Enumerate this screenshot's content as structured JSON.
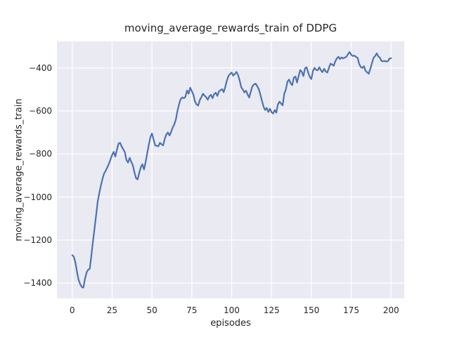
{
  "colors": {
    "figure_background": "#ffffff",
    "plot_background": "#eaeaf2",
    "grid": "#ffffff",
    "line": "#4c72b0",
    "text": "#262626"
  },
  "chart_data": {
    "type": "line",
    "title": "moving_average_rewards_train of DDPG",
    "xlabel": "episodes",
    "ylabel": "moving_average_rewards_train",
    "grid": true,
    "legend_position": "none",
    "xlim": [
      -9.6,
      208.3
    ],
    "ylim": [
      -1471,
      -277
    ],
    "x_ticks": [
      {
        "v": 0,
        "label": "0"
      },
      {
        "v": 25,
        "label": "25"
      },
      {
        "v": 50,
        "label": "50"
      },
      {
        "v": 75,
        "label": "75"
      },
      {
        "v": 100,
        "label": "100"
      },
      {
        "v": 125,
        "label": "125"
      },
      {
        "v": 150,
        "label": "150"
      },
      {
        "v": 175,
        "label": "175"
      },
      {
        "v": 200,
        "label": "200"
      }
    ],
    "y_ticks": [
      {
        "v": -400,
        "label": "−400"
      },
      {
        "v": -600,
        "label": "−600"
      },
      {
        "v": -800,
        "label": "−800"
      },
      {
        "v": -1000,
        "label": "−1000"
      },
      {
        "v": -1200,
        "label": "−1200"
      },
      {
        "v": -1400,
        "label": "−1400"
      }
    ],
    "series": [
      {
        "name": "moving_average_rewards_train",
        "color": "#4c72b0",
        "points": [
          [
            0,
            -1270
          ],
          [
            1,
            -1278
          ],
          [
            2,
            -1305
          ],
          [
            3,
            -1350
          ],
          [
            4,
            -1385
          ],
          [
            5,
            -1405
          ],
          [
            6,
            -1418
          ],
          [
            7,
            -1421
          ],
          [
            8,
            -1380
          ],
          [
            9,
            -1350
          ],
          [
            10,
            -1338
          ],
          [
            11,
            -1333
          ],
          [
            12,
            -1270
          ],
          [
            13,
            -1207
          ],
          [
            14,
            -1145
          ],
          [
            15,
            -1082
          ],
          [
            16,
            -1020
          ],
          [
            17,
            -980
          ],
          [
            18,
            -945
          ],
          [
            19,
            -915
          ],
          [
            20,
            -890
          ],
          [
            21,
            -878
          ],
          [
            22,
            -862
          ],
          [
            23,
            -846
          ],
          [
            24,
            -825
          ],
          [
            25,
            -805
          ],
          [
            26,
            -790
          ],
          [
            27,
            -812
          ],
          [
            28,
            -782
          ],
          [
            29,
            -752
          ],
          [
            30,
            -748
          ],
          [
            31,
            -765
          ],
          [
            32,
            -778
          ],
          [
            33,
            -792
          ],
          [
            34,
            -828
          ],
          [
            35,
            -840
          ],
          [
            36,
            -818
          ],
          [
            37,
            -836
          ],
          [
            38,
            -852
          ],
          [
            39,
            -885
          ],
          [
            40,
            -912
          ],
          [
            41,
            -918
          ],
          [
            42,
            -888
          ],
          [
            43,
            -862
          ],
          [
            44,
            -848
          ],
          [
            45,
            -872
          ],
          [
            46,
            -838
          ],
          [
            47,
            -798
          ],
          [
            48,
            -758
          ],
          [
            49,
            -722
          ],
          [
            50,
            -705
          ],
          [
            51,
            -732
          ],
          [
            52,
            -760
          ],
          [
            53,
            -762
          ],
          [
            54,
            -764
          ],
          [
            55,
            -748
          ],
          [
            56,
            -755
          ],
          [
            57,
            -760
          ],
          [
            58,
            -730
          ],
          [
            59,
            -710
          ],
          [
            60,
            -700
          ],
          [
            61,
            -714
          ],
          [
            62,
            -698
          ],
          [
            63,
            -677
          ],
          [
            64,
            -662
          ],
          [
            65,
            -640
          ],
          [
            66,
            -600
          ],
          [
            67,
            -568
          ],
          [
            68,
            -545
          ],
          [
            69,
            -537
          ],
          [
            70,
            -541
          ],
          [
            71,
            -534
          ],
          [
            72,
            -505
          ],
          [
            73,
            -520
          ],
          [
            74,
            -492
          ],
          [
            75,
            -508
          ],
          [
            76,
            -525
          ],
          [
            77,
            -556
          ],
          [
            78,
            -570
          ],
          [
            79,
            -575
          ],
          [
            80,
            -550
          ],
          [
            81,
            -536
          ],
          [
            82,
            -520
          ],
          [
            83,
            -529
          ],
          [
            84,
            -536
          ],
          [
            85,
            -548
          ],
          [
            86,
            -532
          ],
          [
            87,
            -525
          ],
          [
            88,
            -541
          ],
          [
            89,
            -522
          ],
          [
            90,
            -515
          ],
          [
            91,
            -530
          ],
          [
            92,
            -510
          ],
          [
            93,
            -503
          ],
          [
            94,
            -499
          ],
          [
            95,
            -513
          ],
          [
            96,
            -488
          ],
          [
            97,
            -458
          ],
          [
            98,
            -438
          ],
          [
            99,
            -428
          ],
          [
            100,
            -422
          ],
          [
            101,
            -436
          ],
          [
            102,
            -428
          ],
          [
            103,
            -419
          ],
          [
            104,
            -432
          ],
          [
            105,
            -458
          ],
          [
            106,
            -490
          ],
          [
            107,
            -500
          ],
          [
            108,
            -514
          ],
          [
            109,
            -506
          ],
          [
            110,
            -523
          ],
          [
            111,
            -538
          ],
          [
            112,
            -510
          ],
          [
            113,
            -486
          ],
          [
            114,
            -477
          ],
          [
            115,
            -473
          ],
          [
            116,
            -484
          ],
          [
            117,
            -498
          ],
          [
            118,
            -524
          ],
          [
            119,
            -552
          ],
          [
            120,
            -580
          ],
          [
            121,
            -596
          ],
          [
            122,
            -586
          ],
          [
            123,
            -605
          ],
          [
            124,
            -590
          ],
          [
            125,
            -606
          ],
          [
            126,
            -612
          ],
          [
            127,
            -596
          ],
          [
            128,
            -608
          ],
          [
            129,
            -570
          ],
          [
            130,
            -557
          ],
          [
            131,
            -566
          ],
          [
            132,
            -574
          ],
          [
            133,
            -520
          ],
          [
            134,
            -500
          ],
          [
            135,
            -464
          ],
          [
            136,
            -454
          ],
          [
            137,
            -472
          ],
          [
            138,
            -480
          ],
          [
            139,
            -445
          ],
          [
            140,
            -440
          ],
          [
            141,
            -468
          ],
          [
            142,
            -438
          ],
          [
            143,
            -410
          ],
          [
            144,
            -418
          ],
          [
            145,
            -438
          ],
          [
            146,
            -402
          ],
          [
            147,
            -397
          ],
          [
            148,
            -422
          ],
          [
            149,
            -442
          ],
          [
            150,
            -452
          ],
          [
            151,
            -414
          ],
          [
            152,
            -400
          ],
          [
            153,
            -409
          ],
          [
            154,
            -411
          ],
          [
            155,
            -397
          ],
          [
            156,
            -411
          ],
          [
            157,
            -420
          ],
          [
            158,
            -404
          ],
          [
            159,
            -416
          ],
          [
            160,
            -422
          ],
          [
            161,
            -400
          ],
          [
            162,
            -380
          ],
          [
            163,
            -384
          ],
          [
            164,
            -390
          ],
          [
            165,
            -370
          ],
          [
            166,
            -356
          ],
          [
            167,
            -348
          ],
          [
            168,
            -359
          ],
          [
            169,
            -351
          ],
          [
            170,
            -356
          ],
          [
            171,
            -352
          ],
          [
            172,
            -348
          ],
          [
            173,
            -336
          ],
          [
            174,
            -326
          ],
          [
            175,
            -339
          ],
          [
            176,
            -345
          ],
          [
            177,
            -343
          ],
          [
            178,
            -349
          ],
          [
            179,
            -353
          ],
          [
            180,
            -381
          ],
          [
            181,
            -396
          ],
          [
            182,
            -400
          ],
          [
            183,
            -392
          ],
          [
            184,
            -413
          ],
          [
            185,
            -421
          ],
          [
            186,
            -427
          ],
          [
            187,
            -404
          ],
          [
            188,
            -378
          ],
          [
            189,
            -354
          ],
          [
            190,
            -345
          ],
          [
            191,
            -332
          ],
          [
            192,
            -346
          ],
          [
            193,
            -353
          ],
          [
            194,
            -368
          ],
          [
            195,
            -369
          ],
          [
            196,
            -368
          ],
          [
            197,
            -370
          ],
          [
            198,
            -369
          ],
          [
            199,
            -357
          ],
          [
            200,
            -355
          ]
        ]
      }
    ]
  }
}
